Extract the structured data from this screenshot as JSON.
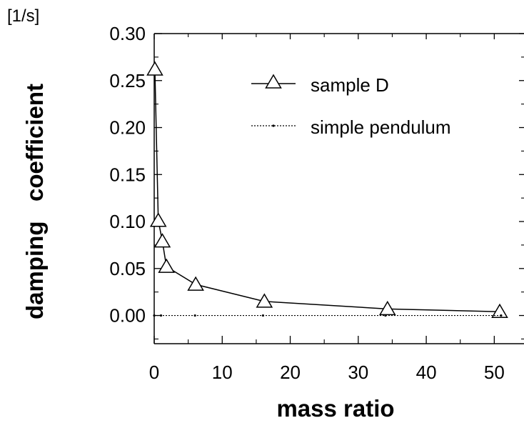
{
  "chart_data": {
    "type": "line",
    "xlabel": "mass ratio",
    "ylabel": "damping   coefficient",
    "yunit": "[1/s]",
    "xlim": [
      0,
      55
    ],
    "ylim": [
      -0.03,
      0.3
    ],
    "xticks": [
      {
        "value": 0,
        "label": "0"
      },
      {
        "value": 10,
        "label": "10"
      },
      {
        "value": 20,
        "label": "20"
      },
      {
        "value": 30,
        "label": "30"
      },
      {
        "value": 40,
        "label": "40"
      },
      {
        "value": 50,
        "label": "50"
      }
    ],
    "yticks": [
      {
        "value": 0.0,
        "label": "0.00"
      },
      {
        "value": 0.05,
        "label": "0.05"
      },
      {
        "value": 0.1,
        "label": "0.10"
      },
      {
        "value": 0.15,
        "label": "0.15"
      },
      {
        "value": 0.2,
        "label": "0.20"
      },
      {
        "value": 0.25,
        "label": "0.25"
      },
      {
        "value": 0.3,
        "label": "0.30"
      }
    ],
    "legend_position": "top-right",
    "series": [
      {
        "name": "sample D",
        "marker": "triangle",
        "line": "solid",
        "points": [
          {
            "x": 0.1,
            "y": 0.262
          },
          {
            "x": 0.6,
            "y": 0.101
          },
          {
            "x": 1.2,
            "y": 0.079
          },
          {
            "x": 1.8,
            "y": 0.052
          },
          {
            "x": 6.1,
            "y": 0.033
          },
          {
            "x": 16.2,
            "y": 0.015
          },
          {
            "x": 34.3,
            "y": 0.007
          },
          {
            "x": 50.8,
            "y": 0.004
          }
        ]
      },
      {
        "name": "simple pendulum",
        "marker": "dot",
        "line": "dotted",
        "points": [
          {
            "x": 0,
            "y": 0.0
          },
          {
            "x": 1,
            "y": 0.0
          },
          {
            "x": 6,
            "y": 0.0
          },
          {
            "x": 16,
            "y": 0.0
          },
          {
            "x": 34,
            "y": 0.0
          },
          {
            "x": 51,
            "y": 0.0
          }
        ]
      }
    ]
  }
}
